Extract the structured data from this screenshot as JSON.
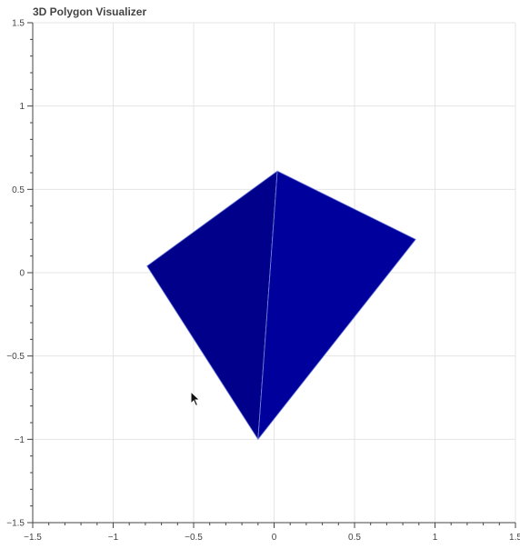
{
  "title": "3D Polygon Visualizer",
  "chart_data": {
    "type": "scatter",
    "title": "3D Polygon Visualizer",
    "xlabel": "",
    "ylabel": "",
    "xlim": [
      -1.5,
      1.5
    ],
    "ylim": [
      -1.5,
      1.5
    ],
    "grid": true,
    "x_ticks": [
      -1.5,
      -1,
      -0.5,
      0,
      0.5,
      1,
      1.5
    ],
    "y_ticks": [
      -1.5,
      -1,
      -0.5,
      0,
      0.5,
      1,
      1.5
    ],
    "x_tick_labels": [
      "−1.5",
      "−1",
      "−0.5",
      "0",
      "0.5",
      "1",
      "1.5"
    ],
    "y_tick_labels": [
      "−1.5",
      "−1",
      "−0.5",
      "0",
      "0.5",
      "1",
      "1.5"
    ],
    "faces": [
      {
        "name": "face-left",
        "color": "#00008b",
        "points": [
          [
            -0.79,
            0.04
          ],
          [
            0.02,
            0.61
          ],
          [
            -0.1,
            -1.0
          ]
        ]
      },
      {
        "name": "face-right",
        "color": "#00009c",
        "points": [
          [
            0.02,
            0.61
          ],
          [
            0.88,
            0.2
          ],
          [
            -0.1,
            -1.0
          ]
        ]
      }
    ],
    "edge_color": "#6f7fd8"
  }
}
